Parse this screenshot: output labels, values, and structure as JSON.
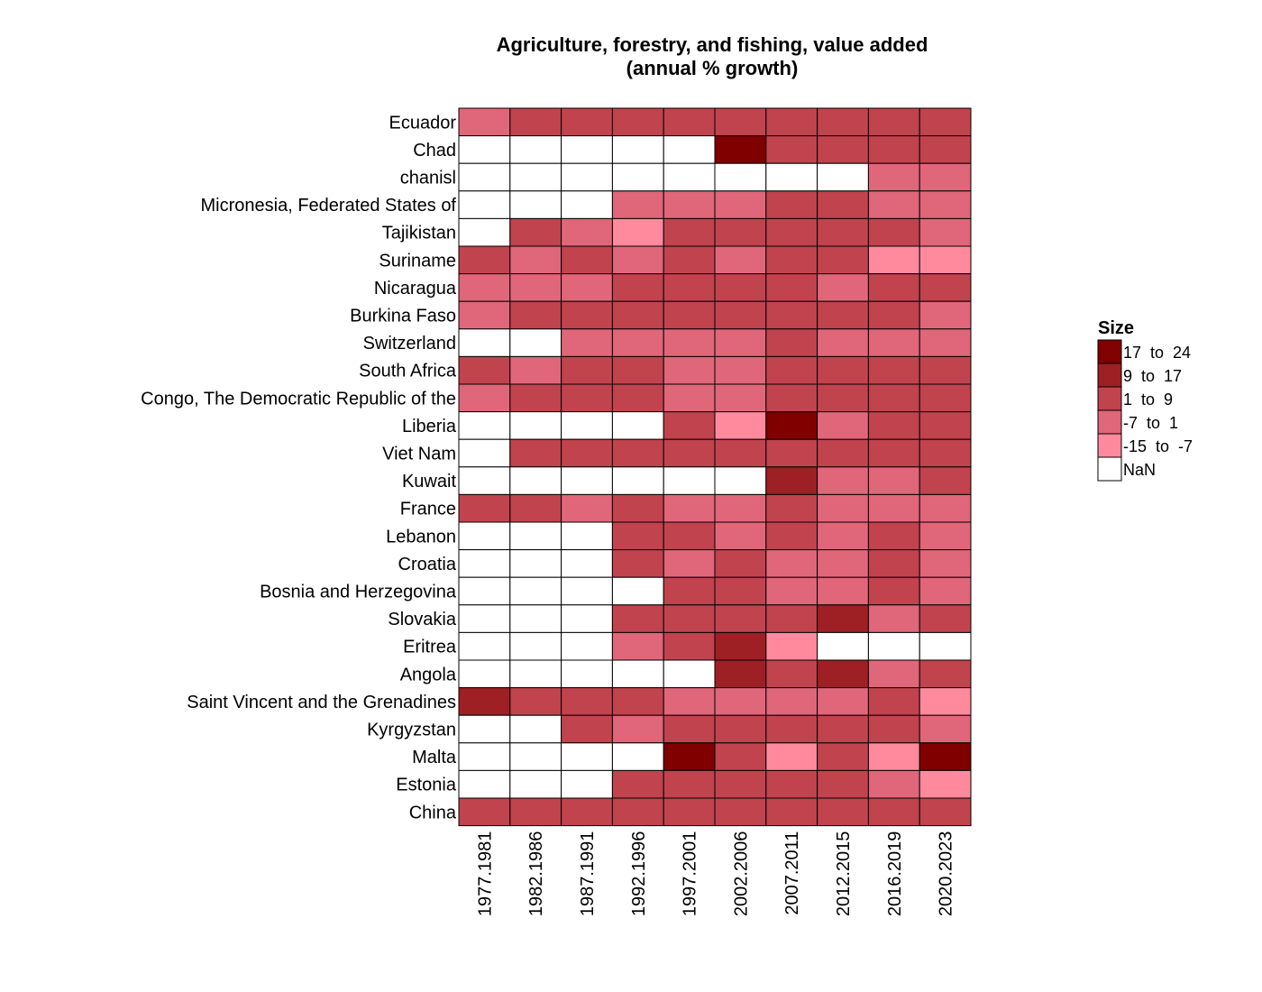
{
  "chart_data": {
    "type": "heatmap",
    "title_lines": [
      "Agriculture, forestry, and fishing, value added",
      "(annual % growth)"
    ],
    "x_categories": [
      "1977.1981",
      "1982.1986",
      "1987.1991",
      "1992.1996",
      "1997.2001",
      "2002.2006",
      "2007.2011",
      "2012.2015",
      "2016.2019",
      "2020.2023"
    ],
    "y_categories": [
      "Ecuador",
      "Chad",
      "chanisl",
      "Micronesia, Federated States of",
      "Tajikistan",
      "Suriname",
      "Nicaragua",
      "Burkina Faso",
      "Switzerland",
      "South Africa",
      "Congo, The Democratic Republic of the",
      "Liberia",
      "Viet Nam",
      "Kuwait",
      "France",
      "Lebanon",
      "Croatia",
      "Bosnia and Herzegovina",
      "Slovakia",
      "Eritrea",
      "Angola",
      "Saint Vincent and the Grenadines",
      "Kyrgyzstan",
      "Malta",
      "Estonia",
      "China"
    ],
    "legend": {
      "title": "Size",
      "bins": [
        {
          "label": "17  to  24",
          "color": "#800000"
        },
        {
          "label": "9  to  17",
          "color": "#9e1f24"
        },
        {
          "label": "1  to  9",
          "color": "#c0434e"
        },
        {
          "label": "-7  to  1",
          "color": "#e0667a"
        },
        {
          "label": "-15  to  -7",
          "color": "#ff8a9e"
        },
        {
          "label": "NaN",
          "color": "#ffffff"
        }
      ]
    },
    "cells": [
      [
        3,
        2,
        2,
        2,
        2,
        2,
        2,
        2,
        2,
        2
      ],
      [
        5,
        5,
        5,
        5,
        5,
        0,
        2,
        2,
        2,
        2
      ],
      [
        5,
        5,
        5,
        5,
        5,
        5,
        5,
        5,
        3,
        3
      ],
      [
        5,
        5,
        5,
        3,
        3,
        3,
        2,
        2,
        3,
        3
      ],
      [
        5,
        2,
        3,
        4,
        2,
        2,
        2,
        2,
        2,
        3
      ],
      [
        2,
        3,
        2,
        3,
        2,
        3,
        2,
        2,
        4,
        4
      ],
      [
        3,
        3,
        3,
        2,
        2,
        2,
        2,
        3,
        2,
        2
      ],
      [
        3,
        2,
        2,
        2,
        2,
        2,
        2,
        2,
        2,
        3
      ],
      [
        5,
        5,
        3,
        3,
        3,
        3,
        2,
        3,
        3,
        3
      ],
      [
        2,
        3,
        2,
        2,
        3,
        3,
        2,
        2,
        2,
        2
      ],
      [
        3,
        2,
        2,
        2,
        3,
        3,
        2,
        2,
        2,
        2
      ],
      [
        5,
        5,
        5,
        5,
        2,
        4,
        0,
        3,
        2,
        2
      ],
      [
        5,
        2,
        2,
        2,
        2,
        2,
        2,
        2,
        2,
        2
      ],
      [
        5,
        5,
        5,
        5,
        5,
        5,
        1,
        3,
        3,
        2
      ],
      [
        2,
        2,
        3,
        2,
        3,
        3,
        2,
        3,
        3,
        3
      ],
      [
        5,
        5,
        5,
        2,
        2,
        3,
        2,
        3,
        2,
        3
      ],
      [
        5,
        5,
        5,
        2,
        3,
        2,
        3,
        3,
        2,
        3
      ],
      [
        5,
        5,
        5,
        5,
        2,
        2,
        3,
        3,
        2,
        3
      ],
      [
        5,
        5,
        5,
        2,
        2,
        2,
        2,
        1,
        3,
        2
      ],
      [
        5,
        5,
        5,
        3,
        2,
        1,
        4,
        5,
        5,
        5
      ],
      [
        5,
        5,
        5,
        5,
        5,
        1,
        2,
        1,
        3,
        2
      ],
      [
        1,
        2,
        2,
        2,
        3,
        3,
        3,
        3,
        2,
        4
      ],
      [
        5,
        5,
        2,
        3,
        2,
        2,
        2,
        2,
        2,
        3
      ],
      [
        5,
        5,
        5,
        5,
        0,
        2,
        4,
        2,
        4,
        0
      ],
      [
        5,
        5,
        5,
        2,
        2,
        2,
        2,
        2,
        3,
        4
      ],
      [
        2,
        2,
        2,
        2,
        2,
        2,
        2,
        2,
        2,
        2
      ]
    ]
  }
}
